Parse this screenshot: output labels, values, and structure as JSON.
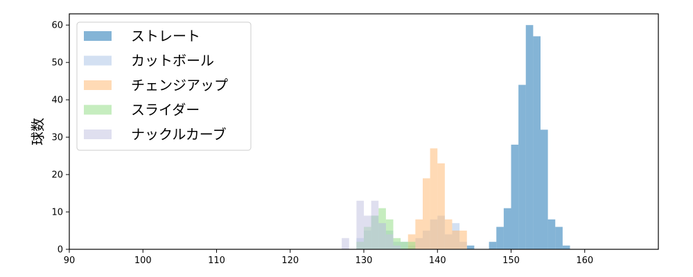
{
  "chart_data": {
    "type": "bar",
    "histogram": true,
    "bin_width": 1,
    "ylabel": "球数",
    "xlabel": "",
    "xlim": [
      90,
      170
    ],
    "ylim": [
      0,
      63
    ],
    "x_ticks": [
      90,
      100,
      110,
      120,
      130,
      140,
      150,
      160
    ],
    "y_ticks": [
      0,
      10,
      20,
      30,
      40,
      50,
      60
    ],
    "grid": false,
    "legend_position": "top-left",
    "series": [
      {
        "name": "ストレート",
        "color": "#1f77b4",
        "bins": [
          {
            "x": 144,
            "count": 1
          },
          {
            "x": 147,
            "count": 2
          },
          {
            "x": 148,
            "count": 6
          },
          {
            "x": 149,
            "count": 11
          },
          {
            "x": 150,
            "count": 28
          },
          {
            "x": 151,
            "count": 44
          },
          {
            "x": 152,
            "count": 60
          },
          {
            "x": 153,
            "count": 57
          },
          {
            "x": 154,
            "count": 32
          },
          {
            "x": 155,
            "count": 8
          },
          {
            "x": 156,
            "count": 6
          },
          {
            "x": 157,
            "count": 1
          }
        ]
      },
      {
        "name": "カットボール",
        "color": "#aec7e8",
        "bins": [
          {
            "x": 129,
            "count": 3
          },
          {
            "x": 130,
            "count": 5
          },
          {
            "x": 131,
            "count": 9
          },
          {
            "x": 132,
            "count": 7
          },
          {
            "x": 133,
            "count": 5
          },
          {
            "x": 134,
            "count": 2
          },
          {
            "x": 135,
            "count": 2
          },
          {
            "x": 136,
            "count": 1
          },
          {
            "x": 137,
            "count": 3
          },
          {
            "x": 138,
            "count": 5
          },
          {
            "x": 139,
            "count": 8
          },
          {
            "x": 140,
            "count": 9
          },
          {
            "x": 141,
            "count": 4
          },
          {
            "x": 142,
            "count": 7
          },
          {
            "x": 143,
            "count": 2
          }
        ]
      },
      {
        "name": "チェンジアップ",
        "color": "#ffbb78",
        "bins": [
          {
            "x": 136,
            "count": 4
          },
          {
            "x": 137,
            "count": 8
          },
          {
            "x": 138,
            "count": 19
          },
          {
            "x": 139,
            "count": 27
          },
          {
            "x": 140,
            "count": 23
          },
          {
            "x": 141,
            "count": 8
          },
          {
            "x": 142,
            "count": 5
          },
          {
            "x": 143,
            "count": 5
          }
        ]
      },
      {
        "name": "スライダー",
        "color": "#98df8a",
        "bins": [
          {
            "x": 129,
            "count": 2
          },
          {
            "x": 130,
            "count": 6
          },
          {
            "x": 131,
            "count": 9
          },
          {
            "x": 132,
            "count": 11
          },
          {
            "x": 133,
            "count": 8
          },
          {
            "x": 134,
            "count": 3
          },
          {
            "x": 135,
            "count": 2
          },
          {
            "x": 136,
            "count": 2
          }
        ]
      },
      {
        "name": "ナックルカーブ",
        "color": "#c5c5e2",
        "bins": [
          {
            "x": 127,
            "count": 3
          },
          {
            "x": 128,
            "count": 0
          },
          {
            "x": 129,
            "count": 13
          },
          {
            "x": 130,
            "count": 9
          },
          {
            "x": 131,
            "count": 13
          },
          {
            "x": 132,
            "count": 7
          },
          {
            "x": 133,
            "count": 4
          },
          {
            "x": 134,
            "count": 1
          }
        ]
      }
    ]
  }
}
